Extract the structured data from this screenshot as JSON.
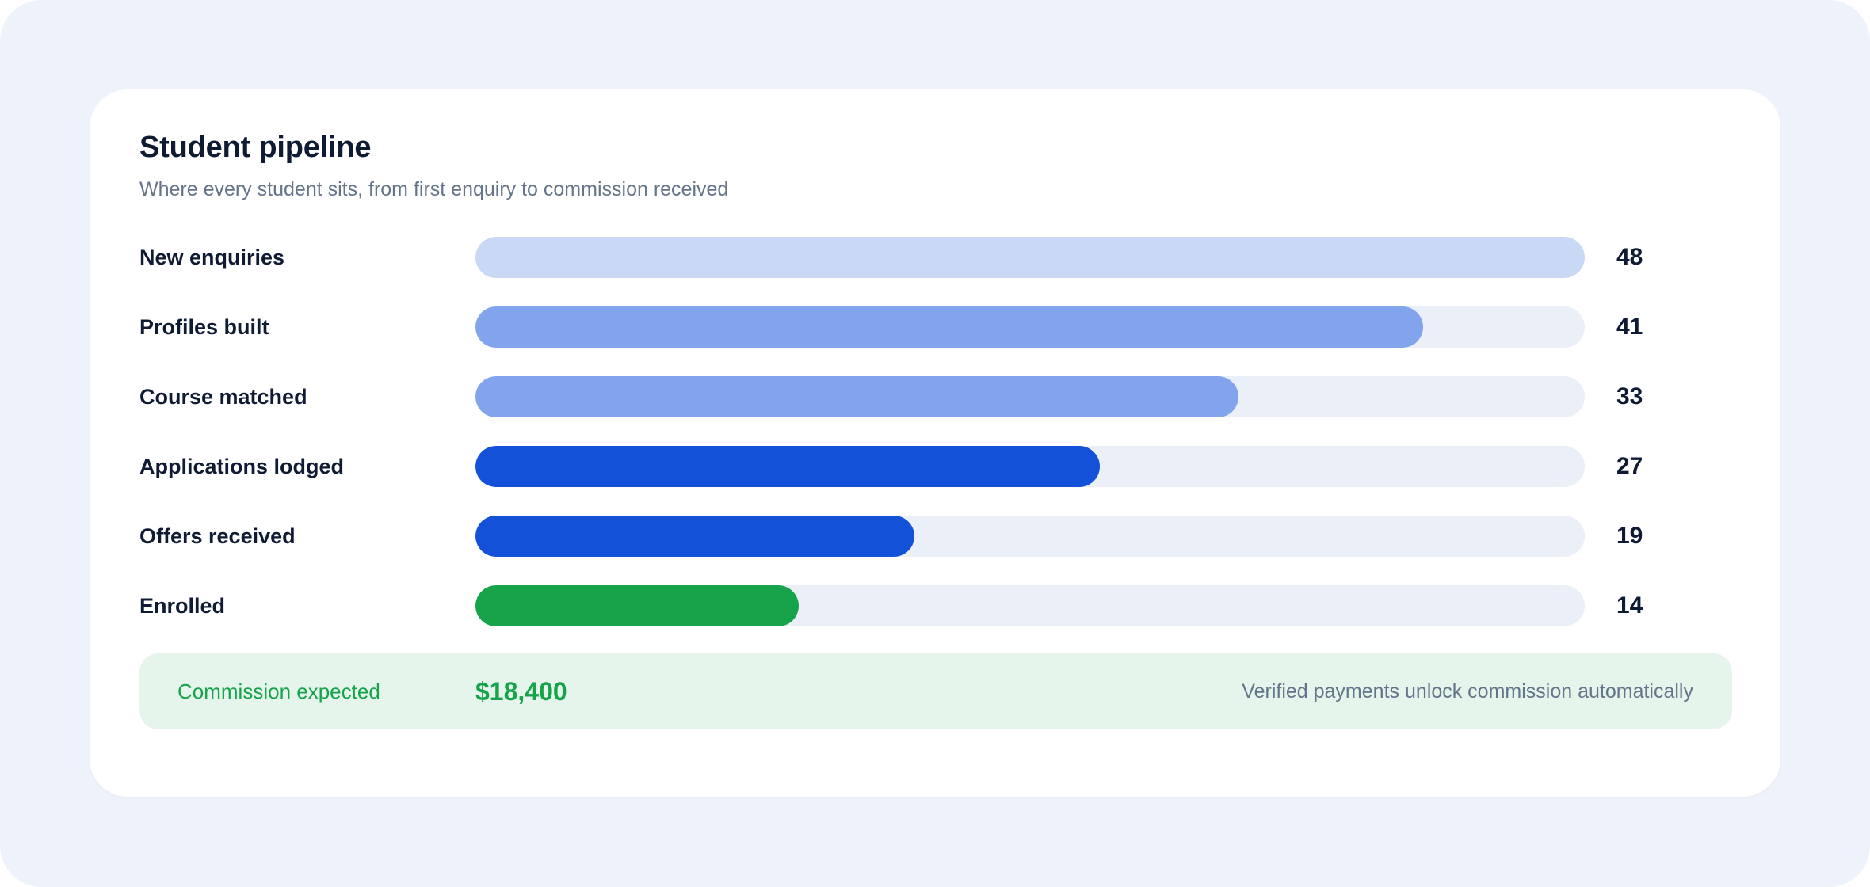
{
  "card": {
    "title": "Student pipeline",
    "subtitle": "Where every student sits, from first enquiry to commission received"
  },
  "chart_data": {
    "type": "bar",
    "orientation": "horizontal",
    "title": "Student pipeline",
    "subtitle": "Where every student sits, from first enquiry to commission received",
    "categories": [
      "New enquiries",
      "Profiles built",
      "Course matched",
      "Applications lodged",
      "Offers received",
      "Enrolled"
    ],
    "values": [
      48,
      41,
      33,
      27,
      19,
      14
    ],
    "xlim": [
      0,
      48
    ],
    "grid": false,
    "colors": [
      "#c9d8f5",
      "#81a4ec",
      "#81a4ec",
      "#1351d8",
      "#1351d8",
      "#16a34a"
    ],
    "track_color": "#eaeff8"
  },
  "commission": {
    "label": "Commission expected",
    "amount": "$18,400",
    "note": "Verified payments unlock commission automatically"
  }
}
